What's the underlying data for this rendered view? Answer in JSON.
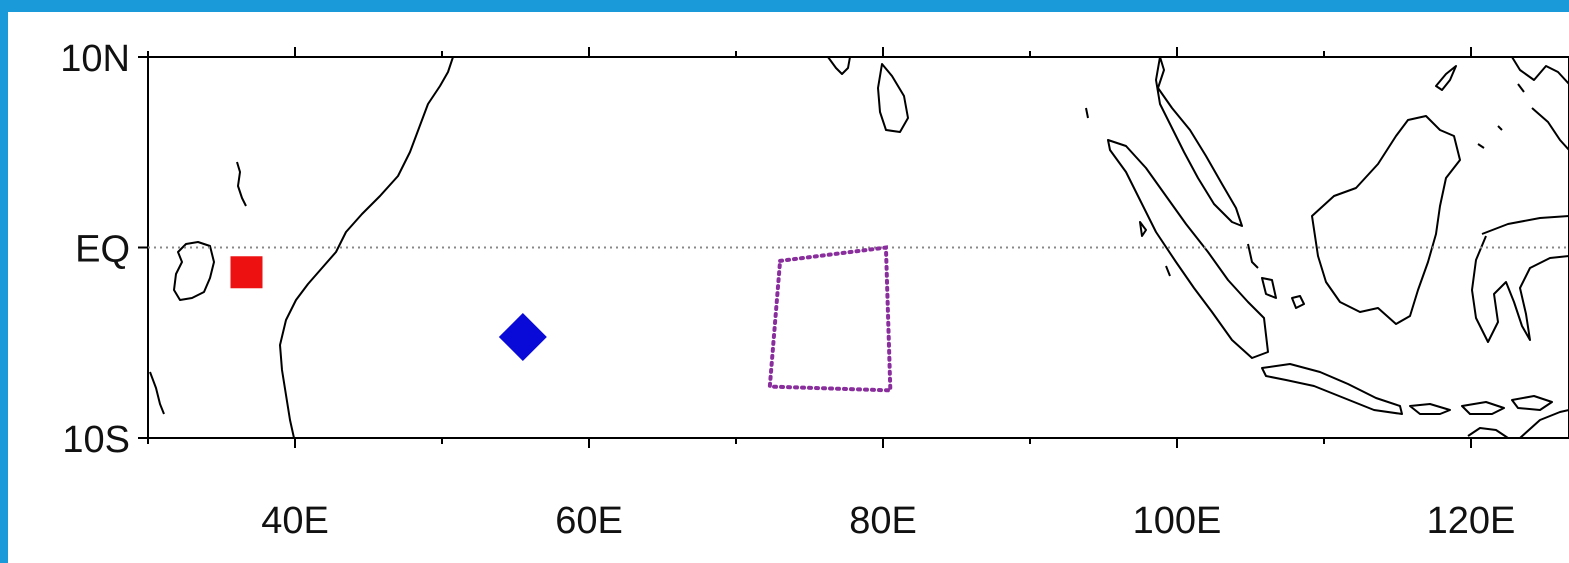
{
  "map": {
    "lon_range": [
      30,
      130
    ],
    "lat_range": [
      -10,
      10
    ],
    "x_ticks": [
      {
        "lon": 40,
        "label": "40E"
      },
      {
        "lon": 60,
        "label": "60E"
      },
      {
        "lon": 80,
        "label": "80E"
      },
      {
        "lon": 100,
        "label": "100E"
      },
      {
        "lon": 120,
        "label": "120E"
      }
    ],
    "y_ticks": [
      {
        "lat": 10,
        "label": "10N"
      },
      {
        "lat": 0,
        "label": "EQ"
      },
      {
        "lat": -10,
        "label": "10S"
      }
    ],
    "equator_line": {
      "lat": 0,
      "style": "dotted",
      "color": "#888888"
    },
    "markers": [
      {
        "name": "red-square-marker",
        "shape": "square",
        "lon": 36.7,
        "lat": -1.3,
        "color": "#ee1111"
      },
      {
        "name": "blue-diamond-marker",
        "shape": "diamond",
        "lon": 55.5,
        "lat": -4.7,
        "color": "#0a0ad8"
      }
    ],
    "region_box": {
      "style": "dotted",
      "color": "#8a2e9e",
      "corners": [
        [
          73.0,
          -0.7
        ],
        [
          80.2,
          0.0
        ],
        [
          80.5,
          -7.5
        ],
        [
          72.3,
          -7.3
        ]
      ]
    },
    "frame_color": "#1a9ad8"
  }
}
